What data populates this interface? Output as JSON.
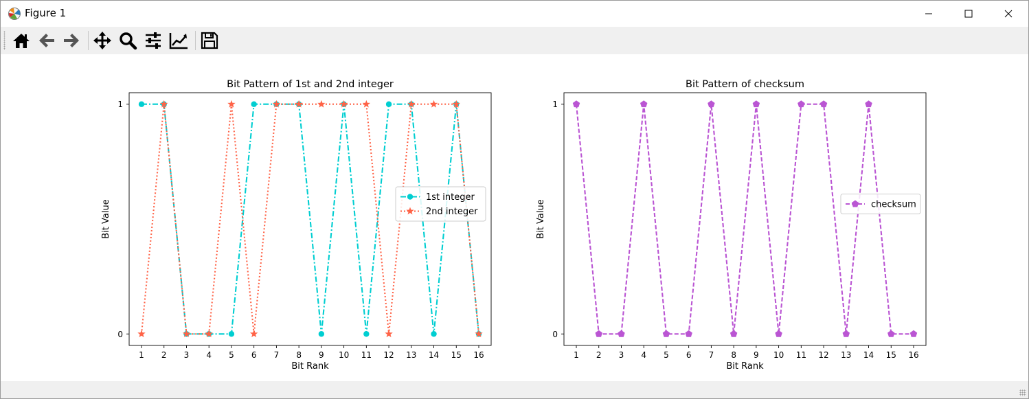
{
  "window": {
    "title": "Figure 1",
    "controls": [
      "minimize-icon",
      "maximize-icon",
      "close-icon"
    ]
  },
  "toolbar": {
    "buttons": [
      {
        "name": "home-button",
        "icon": "home-icon"
      },
      {
        "name": "back-button",
        "icon": "arrow-left-icon"
      },
      {
        "name": "forward-button",
        "icon": "arrow-right-icon"
      },
      {
        "name": "pan-button",
        "icon": "move-icon"
      },
      {
        "name": "zoom-button",
        "icon": "magnifier-icon"
      },
      {
        "name": "configure-subplots-button",
        "icon": "sliders-icon"
      },
      {
        "name": "edit-axis-button",
        "icon": "line-chart-icon"
      },
      {
        "name": "save-button",
        "icon": "floppy-disk-icon"
      }
    ]
  },
  "chart_data": [
    {
      "type": "line",
      "title": "Bit Pattern of 1st and 2nd integer",
      "xlabel": "Bit Rank",
      "ylabel": "Bit Value",
      "x": [
        1,
        2,
        3,
        4,
        5,
        6,
        7,
        8,
        9,
        10,
        11,
        12,
        13,
        14,
        15,
        16
      ],
      "xticks": [
        "1",
        "2",
        "3",
        "4",
        "5",
        "6",
        "7",
        "8",
        "9",
        "10",
        "11",
        "12",
        "13",
        "14",
        "15",
        "16"
      ],
      "yticks": [
        "0",
        "1"
      ],
      "xlim": [
        0.45,
        16.55
      ],
      "ylim": [
        -0.05,
        1.05
      ],
      "grid": false,
      "legend": "center-right",
      "series": [
        {
          "name": "1st integer",
          "values": [
            1,
            1,
            0,
            0,
            0,
            1,
            1,
            1,
            0,
            1,
            0,
            1,
            1,
            0,
            1,
            0
          ],
          "color": "#00ced1",
          "linestyle": "dashdot",
          "marker": "circle"
        },
        {
          "name": "2nd integer",
          "values": [
            0,
            1,
            0,
            0,
            1,
            0,
            1,
            1,
            1,
            1,
            1,
            0,
            1,
            1,
            1,
            0
          ],
          "color": "#ff6347",
          "linestyle": "dotted",
          "marker": "star"
        }
      ]
    },
    {
      "type": "line",
      "title": "Bit Pattern of checksum",
      "xlabel": "Bit Rank",
      "ylabel": "Bit Value",
      "x": [
        1,
        2,
        3,
        4,
        5,
        6,
        7,
        8,
        9,
        10,
        11,
        12,
        13,
        14,
        15,
        16
      ],
      "xticks": [
        "1",
        "2",
        "3",
        "4",
        "5",
        "6",
        "7",
        "8",
        "9",
        "10",
        "11",
        "12",
        "13",
        "14",
        "15",
        "16"
      ],
      "yticks": [
        "0",
        "1"
      ],
      "xlim": [
        0.45,
        16.55
      ],
      "ylim": [
        -0.05,
        1.05
      ],
      "grid": false,
      "legend": "center-right",
      "series": [
        {
          "name": "checksum",
          "values": [
            1,
            0,
            0,
            1,
            0,
            0,
            1,
            0,
            1,
            0,
            1,
            1,
            0,
            1,
            0,
            0
          ],
          "color": "#ba55d3",
          "linestyle": "dashed",
          "marker": "pentagon"
        }
      ]
    }
  ]
}
